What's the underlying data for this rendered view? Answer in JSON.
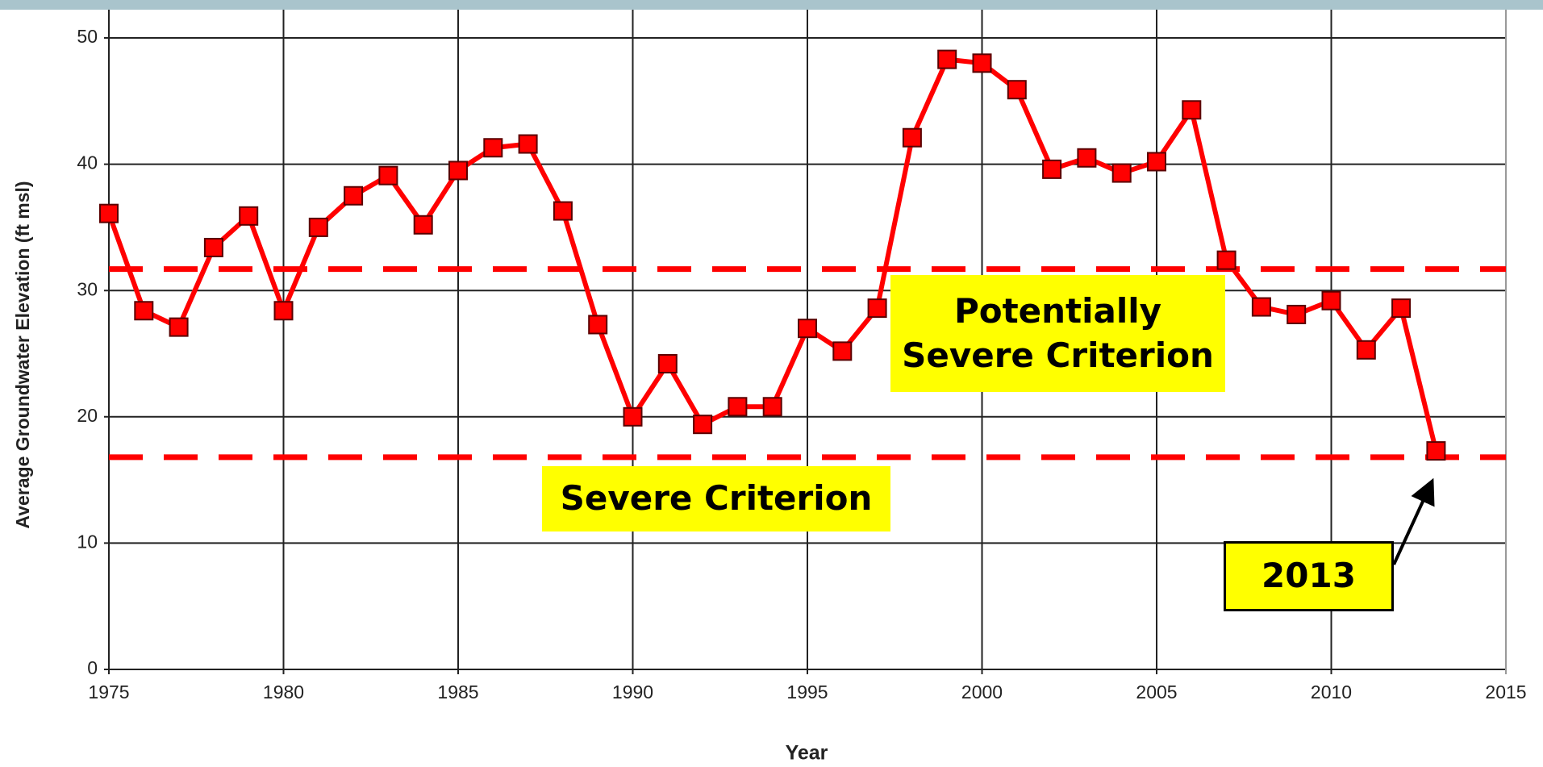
{
  "chart_data": {
    "type": "line",
    "x_label": "Year",
    "y_label": "Average Groundwater Elevation (ft msl)",
    "x": [
      1975,
      1976,
      1977,
      1978,
      1979,
      1980,
      1981,
      1982,
      1983,
      1984,
      1985,
      1986,
      1987,
      1988,
      1989,
      1990,
      1991,
      1992,
      1993,
      1994,
      1995,
      1996,
      1997,
      1998,
      1999,
      2000,
      2001,
      2002,
      2003,
      2004,
      2005,
      2006,
      2007,
      2008,
      2009,
      2010,
      2011,
      2012,
      2013
    ],
    "series": [
      {
        "color": "#ff0000",
        "values": [
          36.1,
          28.4,
          27.1,
          33.4,
          35.9,
          28.4,
          35.0,
          37.5,
          39.1,
          35.2,
          39.5,
          41.3,
          41.6,
          36.3,
          27.3,
          20.0,
          24.2,
          19.4,
          20.8,
          20.8,
          27.0,
          25.2,
          28.6,
          42.1,
          48.3,
          48.0,
          45.9,
          39.6,
          40.5,
          39.3,
          40.2,
          44.3,
          32.4,
          28.7,
          28.1,
          29.2,
          25.3,
          28.6,
          17.3
        ]
      }
    ],
    "xlim": [
      1975,
      2015
    ],
    "xticks": [
      1975,
      1980,
      1985,
      1990,
      1995,
      2000,
      2005,
      2010,
      2015
    ],
    "ylim": [
      0,
      50
    ],
    "yticks": [
      0,
      10,
      20,
      30,
      40,
      50
    ],
    "grid": true,
    "reference_lines": [
      {
        "value": 31.7,
        "label": "Potentially Severe Criterion",
        "color": "#ff0000"
      },
      {
        "value": 16.8,
        "label": "Severe Criterion",
        "color": "#ff0000"
      }
    ],
    "annotations": [
      {
        "text": "2013"
      }
    ]
  }
}
